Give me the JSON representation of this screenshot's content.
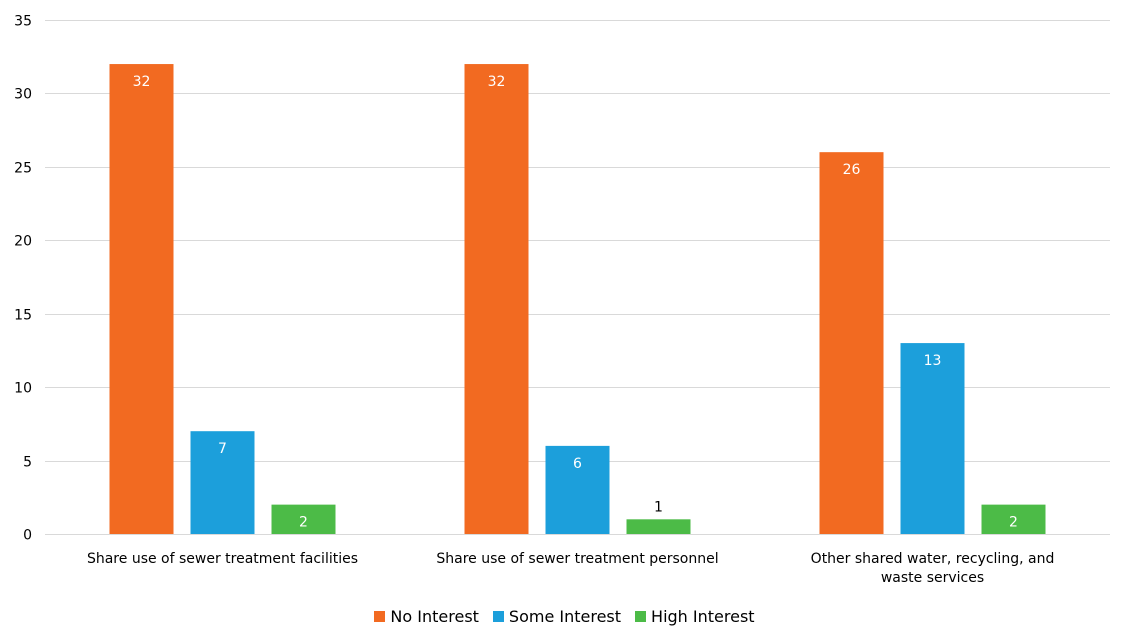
{
  "chart_data": {
    "type": "bar",
    "categories": [
      [
        "Share use of sewer treatment facilities"
      ],
      [
        "Share use of sewer treatment personnel"
      ],
      [
        "Other shared water, recycling, and",
        "waste services"
      ]
    ],
    "series": [
      {
        "name": "No Interest",
        "color": "#f26a21",
        "values": [
          32,
          32,
          26
        ]
      },
      {
        "name": "Some Interest",
        "color": "#1c9fdb",
        "values": [
          7,
          6,
          13
        ]
      },
      {
        "name": "High Interest",
        "color": "#4cbb47",
        "values": [
          2,
          1,
          2
        ]
      }
    ],
    "ylim": [
      0,
      35
    ],
    "yticks": [
      0,
      5,
      10,
      15,
      20,
      25,
      30,
      35
    ],
    "grid": true,
    "legend_position": "bottom"
  }
}
